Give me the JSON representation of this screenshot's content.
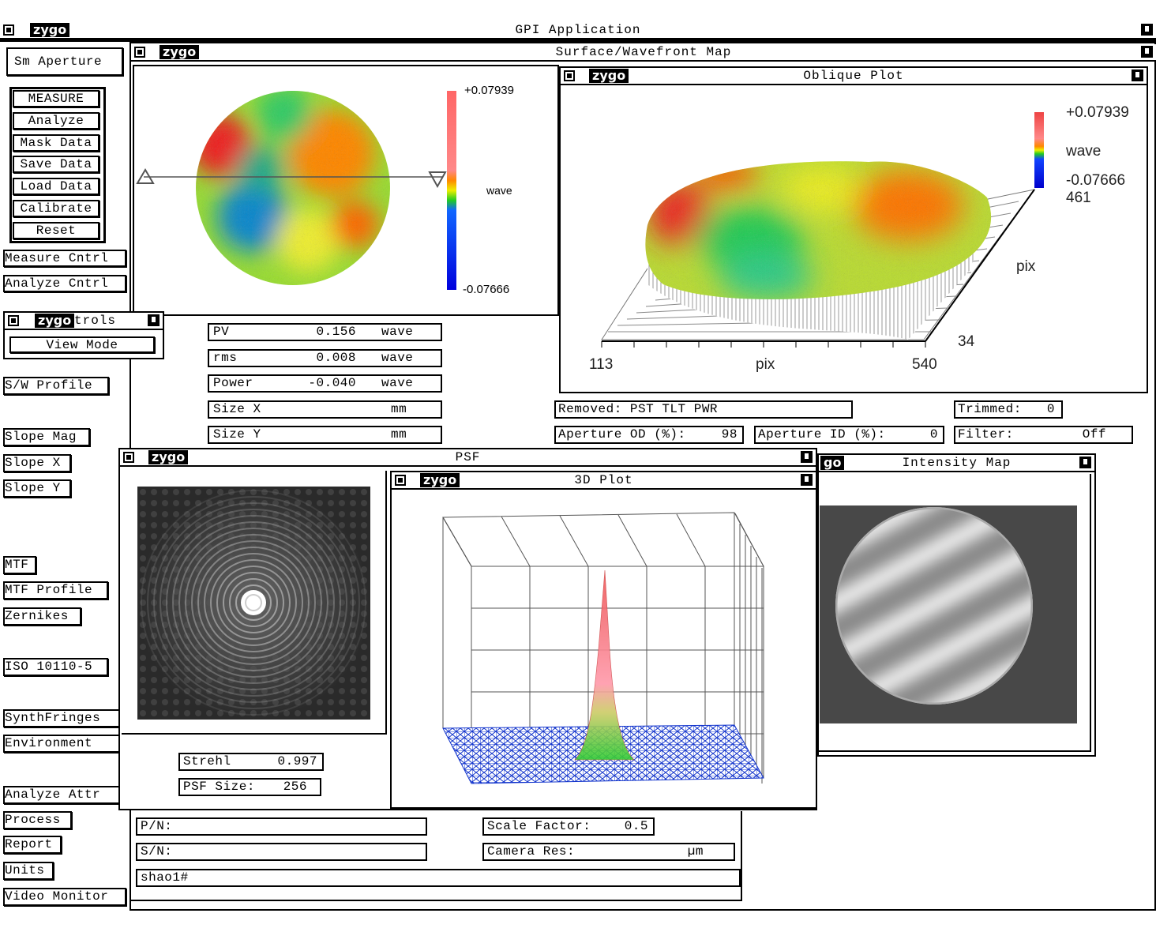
{
  "app": {
    "logo": "zygo",
    "title": "GPI Application"
  },
  "sidebar": {
    "top": "Sm Aperture",
    "main": [
      "MEASURE",
      "Analyze",
      "Mask Data",
      "Save Data",
      "Load Data",
      "Calibrate",
      "Reset"
    ],
    "cntrl": [
      "Measure Cntrl",
      "Analyze Cntrl"
    ],
    "controls_window": {
      "logo": "zygo",
      "title": "trols",
      "button": "View Mode"
    },
    "items": [
      "S/W Profile",
      "Slope Mag",
      "Slope X",
      "Slope Y",
      "MTF",
      "MTF Profile",
      "Zernikes",
      "ISO 10110-5",
      "SynthFringes",
      "Environment",
      "Analyze Attr",
      "Process",
      "Report",
      "Units",
      "Video Monitor"
    ]
  },
  "surface_map": {
    "logo": "zygo",
    "title": "Surface/Wavefront Map",
    "scale_max": "+0.07939",
    "scale_unit": "wave",
    "scale_min": "-0.07666"
  },
  "results": [
    {
      "label": "PV",
      "value": "0.156",
      "unit": "wave"
    },
    {
      "label": "rms",
      "value": "0.008",
      "unit": "wave"
    },
    {
      "label": "Power",
      "value": "-0.040",
      "unit": "wave"
    },
    {
      "label": "Size X",
      "unit": "mm"
    },
    {
      "label": "Size Y",
      "unit": "mm"
    }
  ],
  "oblique_plot": {
    "logo": "zygo",
    "title": "Oblique Plot",
    "scale_max": "+0.07939",
    "scale_unit": "wave",
    "scale_min": "-0.07666",
    "y_max": "461",
    "y_label": "pix",
    "y_min": "34",
    "x_min": "113",
    "x_label": "pix",
    "x_max": "540"
  },
  "settings": {
    "removed": "Removed: PST TLT PWR",
    "trimmed_label": "Trimmed:",
    "trimmed": "0",
    "od_label": "Aperture OD (%):",
    "od": "98",
    "id_label": "Aperture ID (%):",
    "id": "0",
    "filter_label": "Filter:",
    "filter": "Off"
  },
  "psf": {
    "logo": "zygo",
    "title": "PSF",
    "strehl_label": "Strehl",
    "strehl": "0.997",
    "size_label": "PSF Size:",
    "size": "256"
  },
  "plot3d": {
    "logo": "zygo",
    "title": "3D Plot"
  },
  "intensity_map": {
    "logo": "go",
    "title": "Intensity Map"
  },
  "part_info": {
    "pn": "P/N:",
    "sn": "S/N:",
    "note": "shao1#",
    "scale_label": "Scale Factor:",
    "scale": "0.5",
    "camera_label": "Camera Res:",
    "camera_unit": "µm"
  }
}
